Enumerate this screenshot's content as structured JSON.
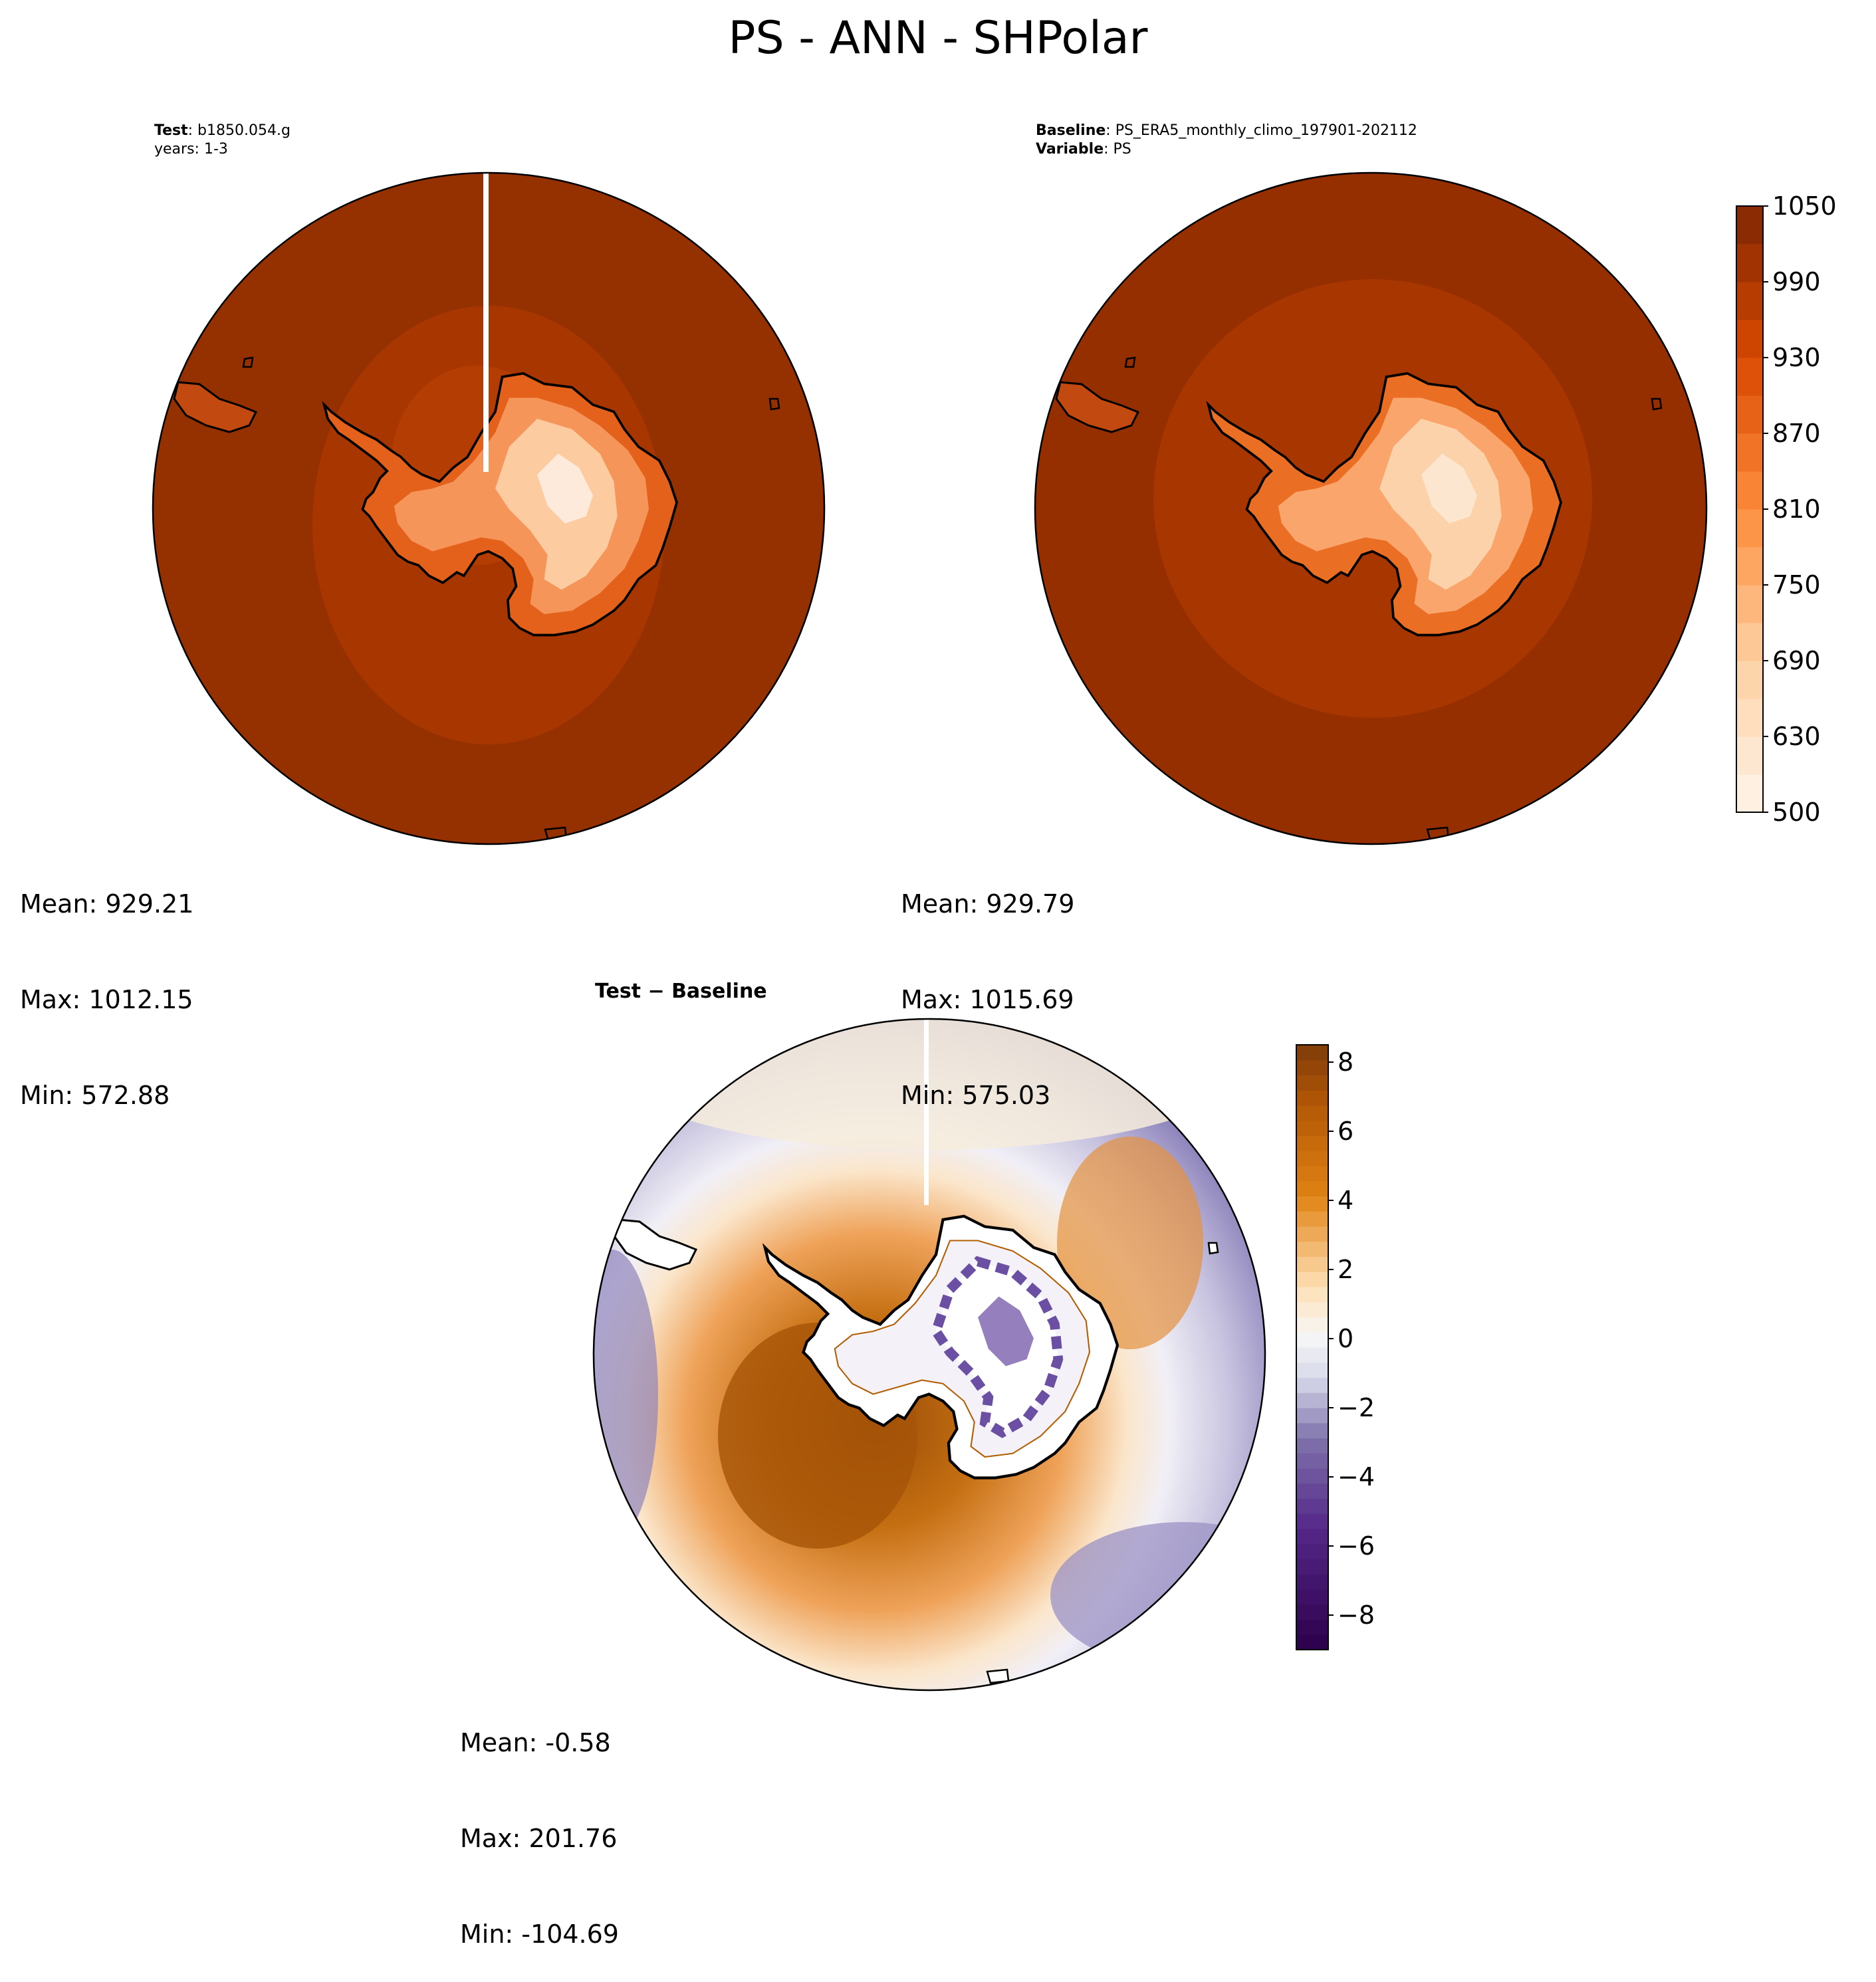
{
  "figure_title": "PS - ANN - SHPolar",
  "panels": {
    "test": {
      "label_bold": "Test",
      "label_value": "b1850.054.g",
      "years": "years: 1-3",
      "stats": {
        "mean": "Mean: 929.21",
        "max": "Max: 1012.15",
        "min": "Min: 572.88"
      }
    },
    "baseline": {
      "label_bold": "Baseline",
      "label_value": "PS_ERA5_monthly_climo_197901-202112",
      "variable_bold": "Variable",
      "variable_value": "PS",
      "stats": {
        "mean": "Mean: 929.79",
        "max": "Max: 1015.69",
        "min": "Min: 575.03"
      }
    },
    "diff": {
      "title_a": "Test",
      "title_sep": " − ",
      "title_b": "Baseline",
      "stats": {
        "mean": "Mean: -0.58",
        "max": "Max: 201.76",
        "min": "Min: -104.69"
      }
    }
  },
  "chart_data": [
    {
      "type": "heatmap",
      "projection": "south-polar-stereographic",
      "panel": "test",
      "variable": "PS",
      "colormap": "Oranges",
      "colorbar_ticks": [
        500,
        630,
        690,
        750,
        810,
        870,
        930,
        990,
        1050
      ],
      "vrange": [
        500,
        1050
      ],
      "ocean_value_approx": 1000,
      "continent_min": 572.88,
      "continent_max": 1012.15,
      "mean": 929.21
    },
    {
      "type": "heatmap",
      "projection": "south-polar-stereographic",
      "panel": "baseline",
      "variable": "PS",
      "colormap": "Oranges",
      "colorbar_ticks": [
        500,
        630,
        690,
        750,
        810,
        870,
        930,
        990,
        1050
      ],
      "vrange": [
        500,
        1050
      ],
      "mean": 929.79,
      "min": 575.03,
      "max": 1015.69
    },
    {
      "type": "heatmap",
      "projection": "south-polar-stereographic",
      "panel": "difference",
      "colormap": "PuOr_r",
      "colorbar_ticks": [
        8,
        6,
        4,
        2,
        0,
        -2,
        -4,
        -6,
        -8
      ],
      "colorbar_tick_labels": [
        "8",
        "6",
        "4",
        "2",
        "0",
        "−2",
        "−4",
        "−6",
        "−8"
      ],
      "vrange": [
        -9,
        8.5
      ],
      "mean": -0.58,
      "max": 201.76,
      "min": -104.69
    }
  ],
  "colors": {
    "ocean_test": "#953000",
    "ocean_base": "#952f00",
    "ring_inner": "#a83600",
    "interior_light": "#fde6cf",
    "diff_orange_dark": "#a65408",
    "diff_purple": "#8f85bc",
    "diff_white": "#f7f6f2"
  }
}
